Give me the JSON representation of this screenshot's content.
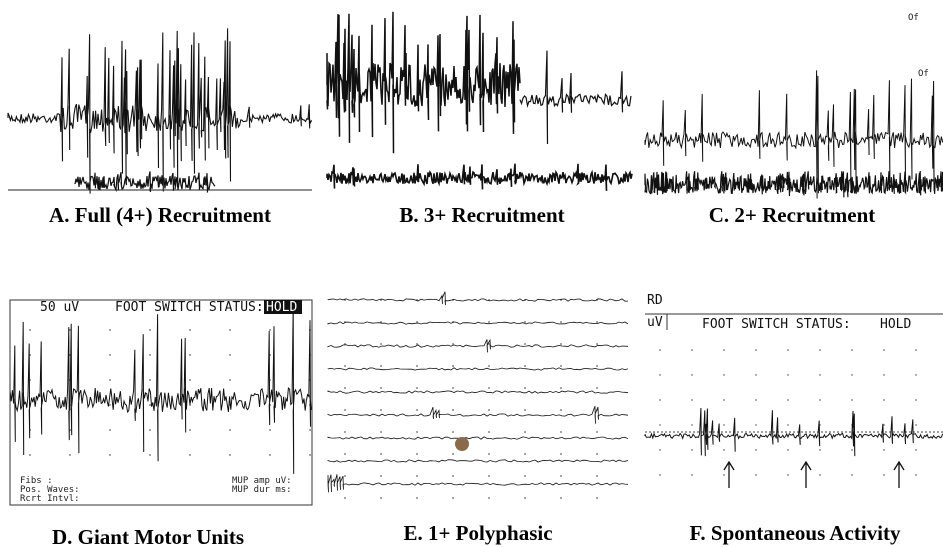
{
  "panels": [
    {
      "caption": "A. Full (4+) Recruitment"
    },
    {
      "caption": "B. 3+ Recruitment"
    },
    {
      "caption": "C. 2+ Recruitment",
      "overlay_texts": [
        "Of",
        "Of"
      ]
    },
    {
      "caption": "D. Giant Motor Units",
      "overlay_texts": [
        "50 uV",
        "FOOT SWITCH STATUS:",
        "HOLD",
        "Fibs :",
        "Pos. Waves:",
        "Rcrt Intvl:",
        "MUP amp uV:",
        "MUP dur ms:"
      ]
    },
    {
      "caption": "E. 1+ Polyphasic"
    },
    {
      "caption": "F. Spontaneous Activity",
      "overlay_texts": [
        "RD",
        "uV",
        "FOOT SWITCH STATUS:",
        "HOLD"
      ]
    }
  ]
}
